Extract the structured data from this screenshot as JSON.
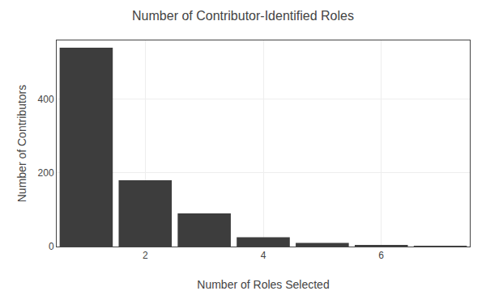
{
  "chart_data": {
    "type": "bar",
    "title": "Number of Contributor-Identified Roles",
    "xlabel": "Number of Roles Selected",
    "ylabel": "Number of Contributors",
    "x": [
      1,
      2,
      3,
      4,
      5,
      6,
      7
    ],
    "values": [
      540,
      180,
      90,
      25,
      10,
      3,
      2
    ],
    "color": "#3d3d3d",
    "xlim": [
      0.5,
      7.5
    ],
    "ylim": [
      0,
      560
    ],
    "xticks": [
      2,
      4,
      6
    ],
    "yticks": [
      0,
      200,
      400
    ],
    "grid": true
  }
}
